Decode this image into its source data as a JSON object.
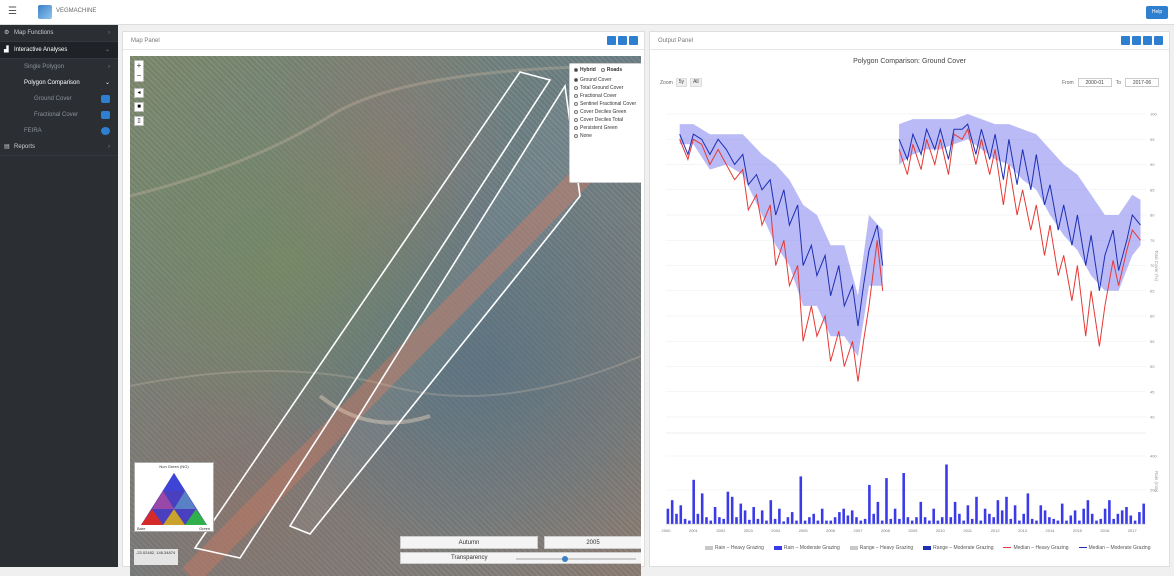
{
  "header": {
    "brand": "VEGMACHINE",
    "help_label": "Help"
  },
  "sidebar": {
    "items": [
      {
        "label": "Map Functions"
      },
      {
        "label": "Interactive Analyses"
      },
      {
        "label": "Single Polygon"
      },
      {
        "label": "Polygon Comparison"
      },
      {
        "label": "Ground Cover"
      },
      {
        "label": "Fractional Cover"
      },
      {
        "label": "FEIRA"
      },
      {
        "label": "Reports"
      }
    ]
  },
  "map_panel": {
    "title": "Map Panel",
    "layers": {
      "base_options": [
        "Hybrid",
        "Roads"
      ],
      "items": [
        "Ground Cover",
        "Total Ground Cover",
        "Fractional Cover",
        "Sentinel Fractional Cover",
        "Cover Deciles Green",
        "Cover Deciles Total",
        "Persistent Green",
        "None"
      ],
      "selected": "Ground Cover"
    },
    "legend_title": "Non Green (NG)",
    "legend_left": "Bare",
    "legend_right": "Green",
    "coords": "-23.02482, 146.34874",
    "season": "Autumn",
    "year": "2005",
    "transparency_label": "Transparency",
    "transparency_value": 0.4
  },
  "output_panel": {
    "title": "Output Panel",
    "chart_title": "Polygon Comparison: Ground Cover",
    "zoom_label": "Zoom",
    "zoom_options": [
      "5y",
      "All"
    ],
    "from_label": "From",
    "from_value": "2000-01",
    "to_label": "To",
    "to_value": "2017-06"
  },
  "chart_data": {
    "type": "line",
    "title": "Polygon Comparison: Ground Cover",
    "ylabel": "Total Cover (%)",
    "ylim": [
      40,
      100
    ],
    "y_ticks": [
      40,
      45,
      50,
      55,
      60,
      65,
      70,
      75,
      80,
      85,
      90,
      95,
      100
    ],
    "x_ticks": [
      "2000",
      "2001",
      "2002",
      "2003",
      "2004",
      "2005",
      "2006",
      "2007",
      "2008",
      "2009",
      "2010",
      "2011",
      "2012",
      "2013",
      "2014",
      "2015",
      "2016",
      "2017"
    ],
    "xlim": [
      2000,
      2017.5
    ],
    "series": [
      {
        "name": "Median – Moderate Grazing",
        "color": "#1d2fb3",
        "segments": [
          [
            [
              2000.5,
              96
            ],
            [
              2000.8,
              92
            ],
            [
              2001.0,
              96
            ],
            [
              2001.3,
              95
            ],
            [
              2001.6,
              92
            ],
            [
              2001.9,
              95
            ],
            [
              2002.2,
              93
            ],
            [
              2002.5,
              90
            ],
            [
              2002.8,
              92
            ],
            [
              2003.0,
              86
            ],
            [
              2003.3,
              88
            ],
            [
              2003.5,
              85
            ],
            [
              2003.8,
              87
            ],
            [
              2004.0,
              80
            ],
            [
              2004.3,
              85
            ],
            [
              2004.5,
              78
            ],
            [
              2004.8,
              82
            ],
            [
              2005.0,
              70
            ],
            [
              2005.3,
              74
            ],
            [
              2005.5,
              68
            ],
            [
              2005.8,
              72
            ],
            [
              2006.0,
              64
            ],
            [
              2006.3,
              70
            ],
            [
              2006.5,
              62
            ],
            [
              2006.8,
              66
            ],
            [
              2007.0,
              58
            ],
            [
              2007.2,
              66
            ],
            [
              2007.4,
              73
            ],
            [
              2007.7,
              78
            ],
            [
              2007.9,
              70
            ]
          ],
          [
            [
              2008.5,
              95
            ],
            [
              2008.8,
              91
            ],
            [
              2009.0,
              96
            ],
            [
              2009.3,
              92
            ],
            [
              2009.5,
              97
            ],
            [
              2009.8,
              93
            ],
            [
              2010.0,
              97
            ],
            [
              2010.3,
              91
            ],
            [
              2010.5,
              97
            ],
            [
              2010.8,
              97
            ],
            [
              2011.0,
              98
            ],
            [
              2011.3,
              92
            ],
            [
              2011.5,
              97
            ],
            [
              2011.8,
              91
            ],
            [
              2012.0,
              96
            ],
            [
              2012.3,
              87
            ],
            [
              2012.5,
              95
            ],
            [
              2012.8,
              86
            ],
            [
              2013.0,
              93
            ],
            [
              2013.3,
              85
            ],
            [
              2013.5,
              92
            ],
            [
              2013.8,
              82
            ],
            [
              2014.0,
              86
            ],
            [
              2014.3,
              77
            ],
            [
              2014.5,
              82
            ],
            [
              2014.8,
              74
            ],
            [
              2015.0,
              80
            ],
            [
              2015.3,
              70
            ],
            [
              2015.5,
              76
            ],
            [
              2015.8,
              65
            ],
            [
              2016.0,
              72
            ],
            [
              2016.3,
              77
            ],
            [
              2016.5,
              69
            ],
            [
              2016.8,
              75
            ],
            [
              2017.0,
              80
            ],
            [
              2017.3,
              78
            ]
          ]
        ]
      },
      {
        "name": "Median – Heavy Grazing",
        "color": "#e53935",
        "segments": [
          [
            [
              2000.5,
              95
            ],
            [
              2000.8,
              91
            ],
            [
              2001.0,
              95
            ],
            [
              2001.3,
              94
            ],
            [
              2001.6,
              90
            ],
            [
              2001.9,
              93
            ],
            [
              2002.2,
              90
            ],
            [
              2002.5,
              87
            ],
            [
              2002.8,
              89
            ],
            [
              2003.0,
              81
            ],
            [
              2003.3,
              84
            ],
            [
              2003.5,
              78
            ],
            [
              2003.8,
              82
            ],
            [
              2004.0,
              70
            ],
            [
              2004.3,
              75
            ],
            [
              2004.5,
              66
            ],
            [
              2004.8,
              70
            ],
            [
              2005.0,
              55
            ],
            [
              2005.3,
              62
            ],
            [
              2005.5,
              56
            ],
            [
              2005.8,
              60
            ],
            [
              2006.0,
              51
            ],
            [
              2006.3,
              57
            ],
            [
              2006.5,
              50
            ],
            [
              2006.8,
              55
            ],
            [
              2007.0,
              47
            ],
            [
              2007.2,
              55
            ],
            [
              2007.4,
              62
            ],
            [
              2007.7,
              75
            ],
            [
              2007.9,
              65
            ]
          ],
          [
            [
              2008.5,
              93
            ],
            [
              2008.8,
              88
            ],
            [
              2009.0,
              94
            ],
            [
              2009.3,
              89
            ],
            [
              2009.5,
              95
            ],
            [
              2009.8,
              90
            ],
            [
              2010.0,
              95
            ],
            [
              2010.3,
              88
            ],
            [
              2010.5,
              96
            ],
            [
              2010.8,
              95
            ],
            [
              2011.0,
              97
            ],
            [
              2011.3,
              90
            ],
            [
              2011.5,
              95
            ],
            [
              2011.8,
              88
            ],
            [
              2012.0,
              93
            ],
            [
              2012.3,
              82
            ],
            [
              2012.5,
              90
            ],
            [
              2012.8,
              80
            ],
            [
              2013.0,
              85
            ],
            [
              2013.3,
              77
            ],
            [
              2013.5,
              82
            ],
            [
              2013.8,
              72
            ],
            [
              2014.0,
              78
            ],
            [
              2014.3,
              68
            ],
            [
              2014.5,
              72
            ],
            [
              2014.8,
              63
            ],
            [
              2015.0,
              70
            ],
            [
              2015.3,
              56
            ],
            [
              2015.5,
              65
            ],
            [
              2015.8,
              54
            ],
            [
              2016.0,
              62
            ],
            [
              2016.3,
              71
            ],
            [
              2016.5,
              66
            ],
            [
              2016.8,
              73
            ],
            [
              2017.0,
              77
            ],
            [
              2017.3,
              75
            ]
          ]
        ]
      }
    ],
    "band": {
      "name": "Range – Moderate Grazing",
      "color": "#8c8cf0",
      "segments": [
        {
          "x": [
            2000.5,
            2001.0,
            2001.6,
            2002.2,
            2002.8,
            2003.5,
            2004.0,
            2004.5,
            2005.0,
            2005.5,
            2006.0,
            2006.5,
            2007.0,
            2007.4,
            2007.9
          ],
          "low": [
            94,
            94,
            89,
            90,
            88,
            80,
            74,
            70,
            62,
            62,
            56,
            56,
            52,
            66,
            66
          ],
          "high": [
            98,
            98,
            96,
            96,
            96,
            92,
            90,
            87,
            82,
            80,
            74,
            74,
            64,
            80,
            77
          ]
        },
        {
          "x": [
            2008.5,
            2009.0,
            2009.5,
            2010.0,
            2010.5,
            2011.0,
            2011.5,
            2012.0,
            2012.5,
            2013.0,
            2013.5,
            2014.0,
            2014.5,
            2015.0,
            2015.5,
            2016.0,
            2016.5,
            2017.0,
            2017.3
          ],
          "low": [
            90,
            92,
            93,
            93,
            94,
            95,
            93,
            91,
            90,
            87,
            85,
            80,
            76,
            73,
            68,
            65,
            65,
            72,
            74
          ],
          "high": [
            98,
            99,
            99,
            99,
            99,
            100,
            99,
            98,
            98,
            97,
            96,
            93,
            90,
            88,
            84,
            80,
            80,
            84,
            83
          ]
        }
      ]
    },
    "rain": {
      "name": "Rain – Moderate Grazing",
      "ylabel": "Rain (mm)",
      "ylim": [
        0,
        500
      ],
      "y_ticks": [
        200,
        400
      ],
      "color": "#3a3ae8",
      "values": [
        90,
        140,
        60,
        110,
        30,
        20,
        260,
        60,
        180,
        40,
        20,
        100,
        40,
        30,
        190,
        160,
        40,
        120,
        80,
        25,
        100,
        30,
        80,
        20,
        140,
        30,
        90,
        15,
        40,
        70,
        20,
        280,
        20,
        40,
        60,
        20,
        90,
        20,
        20,
        40,
        70,
        90,
        50,
        80,
        40,
        20,
        30,
        230,
        60,
        130,
        20,
        270,
        30,
        90,
        30,
        300,
        40,
        20,
        40,
        130,
        40,
        20,
        90,
        20,
        40,
        350,
        40,
        130,
        60,
        20,
        110,
        30,
        160,
        20,
        90,
        60,
        40,
        140,
        80,
        160,
        30,
        110,
        20,
        60,
        180,
        30,
        20,
        110,
        80,
        40,
        30,
        20,
        120,
        20,
        50,
        80,
        20,
        90,
        140,
        60,
        20,
        30,
        90,
        140,
        30,
        60,
        80,
        100,
        50,
        20,
        70,
        120
      ]
    },
    "legend": [
      {
        "label": "Rain – Heavy Grazing",
        "color": "#c8c8c8",
        "style": "bar"
      },
      {
        "label": "Rain – Moderate Grazing",
        "color": "#3a3ae8",
        "style": "bar"
      },
      {
        "label": "Range – Heavy Grazing",
        "color": "#c8c8c8",
        "style": "band"
      },
      {
        "label": "Range – Moderate Grazing",
        "color": "#1d2fb3",
        "style": "band"
      },
      {
        "label": "Median – Heavy Grazing",
        "color": "#e53935",
        "style": "line"
      },
      {
        "label": "Median – Moderate Grazing",
        "color": "#1d2fb3",
        "style": "line"
      }
    ]
  }
}
